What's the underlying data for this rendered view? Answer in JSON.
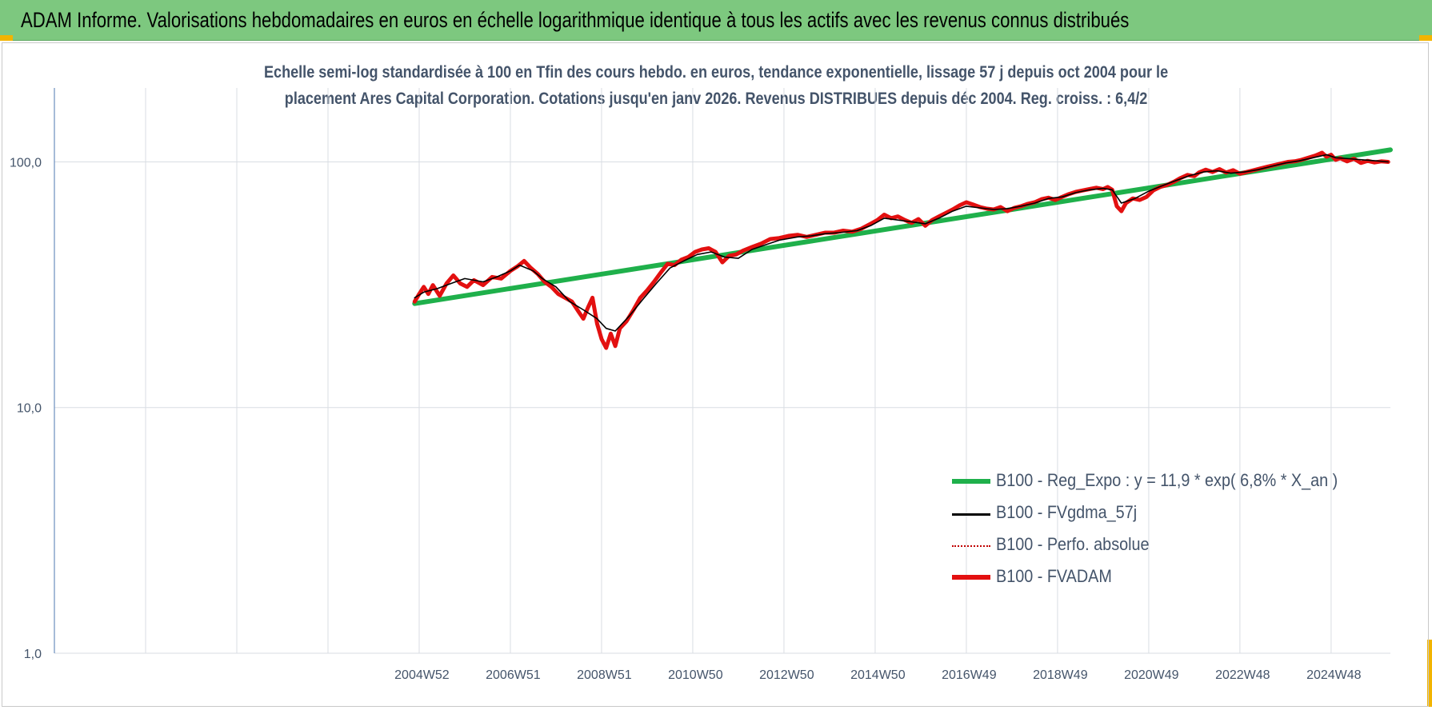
{
  "banner": {
    "title": "ADAM Informe. Valorisations hebdomadaires en euros en échelle logarithmique identique à tous les actifs avec les revenus connus distribués"
  },
  "colors": {
    "banner_bg": "#7dc87f",
    "corner_accent": "#f2b400",
    "trend": "#1fb04b",
    "fvgdma": "#000000",
    "perfo": "#c00000",
    "fvadam": "#e31010",
    "text": "#44546a"
  },
  "chart_data": {
    "type": "line",
    "title_line1": "Echelle semi-log standardisée à 100 en Tfin des cours hebdo. en euros, tendance exponentielle, lissage 57 j depuis oct 2004 pour le",
    "title_line2": "placement Ares Capital Corporation. Cotations jusqu'en janv 2026. Revenus DISTRIBUES depuis déc 2004. Reg. croiss. : 6,4/2",
    "y_scale": "log",
    "ylim": [
      1,
      200
    ],
    "y_ticks": [
      {
        "v": 1,
        "label": "1,0"
      },
      {
        "v": 10,
        "label": "10,0"
      },
      {
        "v": 100,
        "label": "100,0"
      }
    ],
    "xlim": [
      1996.9,
      2026.2
    ],
    "x_ticks": [
      {
        "v": 2004.96,
        "label": "2004W52"
      },
      {
        "v": 2006.96,
        "label": "2006W51"
      },
      {
        "v": 2008.96,
        "label": "2008W51"
      },
      {
        "v": 2010.96,
        "label": "2010W50"
      },
      {
        "v": 2012.96,
        "label": "2012W50"
      },
      {
        "v": 2014.96,
        "label": "2014W50"
      },
      {
        "v": 2016.96,
        "label": "2016W49"
      },
      {
        "v": 2018.96,
        "label": "2018W49"
      },
      {
        "v": 2020.96,
        "label": "2020W49"
      },
      {
        "v": 2022.96,
        "label": "2022W48"
      },
      {
        "v": 2024.96,
        "label": "2024W48"
      }
    ],
    "x_gridlines": [
      1996.9,
      1998.9,
      2000.9,
      2002.9,
      2004.9,
      2006.9,
      2008.9,
      2010.9,
      2012.9,
      2014.9,
      2016.9,
      2018.9,
      2020.9,
      2022.9,
      2024.9
    ],
    "grid": true,
    "legend_position": "bottom-right",
    "series": [
      {
        "name": "B100 - Reg_Expo : y = 11,9 * exp( 6,8% *  X_an )",
        "key": "trend",
        "style": "solid-thick",
        "points": [
          [
            2004.8,
            26.5
          ],
          [
            2026.2,
            112.0
          ]
        ]
      },
      {
        "name": "B100 - FVgdma_57j",
        "key": "fvgdma",
        "style": "solid-thin",
        "points": [
          [
            2004.8,
            28
          ],
          [
            2005.0,
            29.5
          ],
          [
            2005.3,
            30.5
          ],
          [
            2005.6,
            32
          ],
          [
            2005.9,
            33.5
          ],
          [
            2006.3,
            32.5
          ],
          [
            2006.6,
            34
          ],
          [
            2006.9,
            36
          ],
          [
            2007.1,
            38
          ],
          [
            2007.4,
            36
          ],
          [
            2007.6,
            33.5
          ],
          [
            2007.9,
            31
          ],
          [
            2008.2,
            27
          ],
          [
            2008.5,
            25
          ],
          [
            2008.8,
            23
          ],
          [
            2009.0,
            21
          ],
          [
            2009.2,
            20.5
          ],
          [
            2009.5,
            23.5
          ],
          [
            2009.8,
            27.5
          ],
          [
            2010.1,
            32
          ],
          [
            2010.4,
            37
          ],
          [
            2010.7,
            39.5
          ],
          [
            2011.0,
            42
          ],
          [
            2011.3,
            43
          ],
          [
            2011.6,
            41
          ],
          [
            2011.9,
            40.5
          ],
          [
            2012.2,
            44
          ],
          [
            2012.5,
            46
          ],
          [
            2012.8,
            48
          ],
          [
            2013.2,
            49.5
          ],
          [
            2013.5,
            50
          ],
          [
            2013.8,
            51
          ],
          [
            2014.1,
            51.5
          ],
          [
            2014.5,
            52.5
          ],
          [
            2014.8,
            55
          ],
          [
            2015.1,
            59
          ],
          [
            2015.4,
            58
          ],
          [
            2015.7,
            57
          ],
          [
            2016.0,
            56
          ],
          [
            2016.3,
            59
          ],
          [
            2016.6,
            63
          ],
          [
            2016.9,
            66
          ],
          [
            2017.2,
            65
          ],
          [
            2017.5,
            64
          ],
          [
            2017.8,
            64.5
          ],
          [
            2018.1,
            66
          ],
          [
            2018.4,
            68
          ],
          [
            2018.7,
            71
          ],
          [
            2019.0,
            72
          ],
          [
            2019.3,
            75
          ],
          [
            2019.6,
            77
          ],
          [
            2019.9,
            78
          ],
          [
            2020.1,
            77
          ],
          [
            2020.3,
            68
          ],
          [
            2020.6,
            71
          ],
          [
            2020.9,
            76
          ],
          [
            2021.2,
            80
          ],
          [
            2021.5,
            84
          ],
          [
            2021.8,
            88
          ],
          [
            2022.1,
            91
          ],
          [
            2022.4,
            92
          ],
          [
            2022.7,
            90
          ],
          [
            2023.0,
            91
          ],
          [
            2023.3,
            93
          ],
          [
            2023.6,
            96
          ],
          [
            2023.9,
            99
          ],
          [
            2024.2,
            101
          ],
          [
            2024.5,
            104
          ],
          [
            2024.8,
            107
          ],
          [
            2025.0,
            104
          ],
          [
            2025.3,
            103
          ],
          [
            2025.6,
            102
          ],
          [
            2025.9,
            101
          ],
          [
            2026.15,
            100
          ]
        ]
      },
      {
        "name": "B100 - Perfo. absolue",
        "key": "perfo",
        "style": "dotted",
        "points": []
      },
      {
        "name": "B100 - FVADAM",
        "key": "fvadam",
        "style": "solid-thick",
        "points": [
          [
            2004.8,
            27
          ],
          [
            2004.9,
            29
          ],
          [
            2005.0,
            31
          ],
          [
            2005.1,
            29
          ],
          [
            2005.2,
            31.5
          ],
          [
            2005.35,
            28.5
          ],
          [
            2005.5,
            32
          ],
          [
            2005.65,
            34.5
          ],
          [
            2005.8,
            32
          ],
          [
            2005.95,
            31
          ],
          [
            2006.1,
            33
          ],
          [
            2006.3,
            31.5
          ],
          [
            2006.5,
            34
          ],
          [
            2006.7,
            33.5
          ],
          [
            2006.9,
            36
          ],
          [
            2007.05,
            37.5
          ],
          [
            2007.2,
            39.5
          ],
          [
            2007.35,
            37
          ],
          [
            2007.5,
            35
          ],
          [
            2007.65,
            32.5
          ],
          [
            2007.8,
            31
          ],
          [
            2007.95,
            29
          ],
          [
            2008.1,
            28
          ],
          [
            2008.25,
            27
          ],
          [
            2008.4,
            24.5
          ],
          [
            2008.5,
            23
          ],
          [
            2008.6,
            25.5
          ],
          [
            2008.7,
            28
          ],
          [
            2008.8,
            22
          ],
          [
            2008.9,
            19
          ],
          [
            2009.0,
            17.5
          ],
          [
            2009.1,
            20
          ],
          [
            2009.2,
            17.8
          ],
          [
            2009.3,
            21
          ],
          [
            2009.45,
            22.5
          ],
          [
            2009.6,
            25
          ],
          [
            2009.75,
            28
          ],
          [
            2009.9,
            30
          ],
          [
            2010.05,
            32.5
          ],
          [
            2010.2,
            35.5
          ],
          [
            2010.35,
            38.5
          ],
          [
            2010.5,
            38
          ],
          [
            2010.65,
            40
          ],
          [
            2010.8,
            41
          ],
          [
            2010.95,
            43
          ],
          [
            2011.1,
            44
          ],
          [
            2011.25,
            44.5
          ],
          [
            2011.4,
            43
          ],
          [
            2011.55,
            39
          ],
          [
            2011.7,
            41.5
          ],
          [
            2011.85,
            42
          ],
          [
            2012.0,
            43.5
          ],
          [
            2012.2,
            45
          ],
          [
            2012.4,
            46.5
          ],
          [
            2012.6,
            48.5
          ],
          [
            2012.8,
            49
          ],
          [
            2013.0,
            50
          ],
          [
            2013.2,
            50.5
          ],
          [
            2013.4,
            49.5
          ],
          [
            2013.6,
            50.5
          ],
          [
            2013.8,
            51.5
          ],
          [
            2014.0,
            51.5
          ],
          [
            2014.2,
            52.5
          ],
          [
            2014.4,
            52
          ],
          [
            2014.6,
            53.5
          ],
          [
            2014.8,
            56
          ],
          [
            2014.95,
            58
          ],
          [
            2015.1,
            61
          ],
          [
            2015.25,
            59
          ],
          [
            2015.4,
            60
          ],
          [
            2015.55,
            58
          ],
          [
            2015.7,
            56.5
          ],
          [
            2015.85,
            58.5
          ],
          [
            2016.0,
            55
          ],
          [
            2016.15,
            58
          ],
          [
            2016.3,
            60
          ],
          [
            2016.45,
            62
          ],
          [
            2016.6,
            64
          ],
          [
            2016.75,
            66.5
          ],
          [
            2016.9,
            68.5
          ],
          [
            2017.05,
            67
          ],
          [
            2017.2,
            65.5
          ],
          [
            2017.35,
            64.5
          ],
          [
            2017.5,
            64
          ],
          [
            2017.65,
            65.5
          ],
          [
            2017.8,
            63
          ],
          [
            2017.95,
            65
          ],
          [
            2018.1,
            66
          ],
          [
            2018.25,
            67.5
          ],
          [
            2018.4,
            68.5
          ],
          [
            2018.55,
            70.5
          ],
          [
            2018.7,
            71.5
          ],
          [
            2018.85,
            70
          ],
          [
            2019.0,
            72
          ],
          [
            2019.15,
            74
          ],
          [
            2019.3,
            75.5
          ],
          [
            2019.45,
            76.5
          ],
          [
            2019.6,
            77.5
          ],
          [
            2019.75,
            78.5
          ],
          [
            2019.9,
            77.5
          ],
          [
            2020.0,
            79
          ],
          [
            2020.1,
            77
          ],
          [
            2020.2,
            66
          ],
          [
            2020.3,
            63
          ],
          [
            2020.4,
            68
          ],
          [
            2020.55,
            71
          ],
          [
            2020.7,
            70
          ],
          [
            2020.85,
            72
          ],
          [
            2021.0,
            76.5
          ],
          [
            2021.15,
            79
          ],
          [
            2021.3,
            80.5
          ],
          [
            2021.45,
            83
          ],
          [
            2021.6,
            86
          ],
          [
            2021.75,
            88.5
          ],
          [
            2021.9,
            87.5
          ],
          [
            2022.0,
            90.5
          ],
          [
            2022.15,
            93
          ],
          [
            2022.3,
            91
          ],
          [
            2022.45,
            93.5
          ],
          [
            2022.6,
            90.5
          ],
          [
            2022.75,
            92.5
          ],
          [
            2022.9,
            89.5
          ],
          [
            2023.05,
            91
          ],
          [
            2023.2,
            92.5
          ],
          [
            2023.35,
            94
          ],
          [
            2023.5,
            95.5
          ],
          [
            2023.65,
            97
          ],
          [
            2023.8,
            98.5
          ],
          [
            2023.95,
            100
          ],
          [
            2024.1,
            100.5
          ],
          [
            2024.25,
            102
          ],
          [
            2024.4,
            104
          ],
          [
            2024.55,
            106
          ],
          [
            2024.7,
            109
          ],
          [
            2024.8,
            105
          ],
          [
            2024.9,
            107
          ],
          [
            2025.0,
            102
          ],
          [
            2025.1,
            103.5
          ],
          [
            2025.25,
            100.5
          ],
          [
            2025.4,
            103
          ],
          [
            2025.55,
            99
          ],
          [
            2025.7,
            101
          ],
          [
            2025.85,
            99.5
          ],
          [
            2026.0,
            100.5
          ],
          [
            2026.15,
            100
          ]
        ]
      }
    ]
  }
}
